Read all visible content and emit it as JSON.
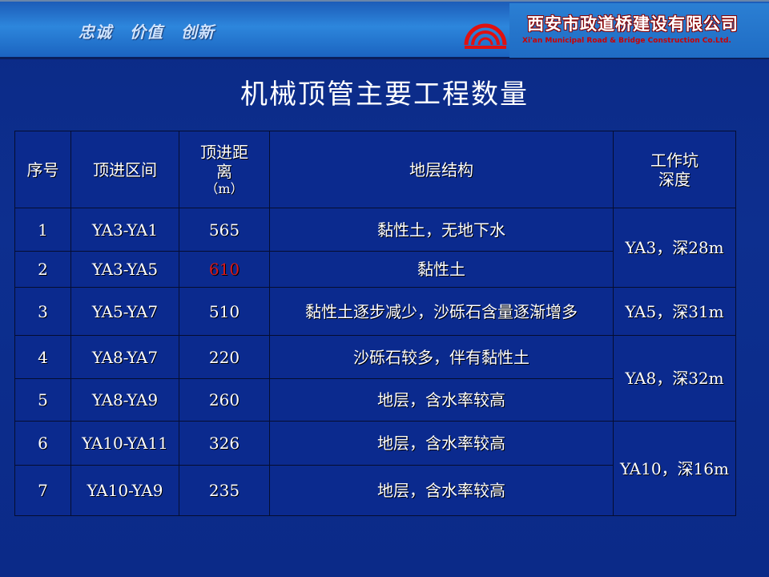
{
  "banner": {
    "slogans": [
      "忠诚",
      "价值",
      "创新"
    ],
    "company_name": "西安市政道桥建设有限公司",
    "company_name_en": "Xi'an Municipal Road & Bridge Construction Co.Ltd.",
    "logo_color": "#e01010"
  },
  "title": "机械顶管主要工程数量",
  "table": {
    "headers": {
      "no": "序号",
      "section": "顶进区间",
      "distance_l1": "顶进距",
      "distance_l2": "离",
      "distance_l3": "（m）",
      "strata": "地层结构",
      "pit_l1": "工作坑",
      "pit_l2": "深度"
    },
    "rows": [
      {
        "no": "1",
        "section": "YA3-YA1",
        "distance": "565",
        "strata": "黏性土，无地下水"
      },
      {
        "no": "2",
        "section": "YA3-YA5",
        "distance": "610",
        "strata": "黏性土"
      },
      {
        "no": "3",
        "section": "YA5-YA7",
        "distance": "510",
        "strata": "黏性土逐步减少，沙砾石含量逐渐增多"
      },
      {
        "no": "4",
        "section": "YA8-YA7",
        "distance": "220",
        "strata": "沙砾石较多，伴有黏性土"
      },
      {
        "no": "5",
        "section": "YA8-YA9",
        "distance": "260",
        "strata": "地层，含水率较高"
      },
      {
        "no": "6",
        "section": "YA10-YA11",
        "distance": "326",
        "strata": "地层，含水率较高"
      },
      {
        "no": "7",
        "section": "YA10-YA9",
        "distance": "235",
        "strata": "地层，含水率较高"
      }
    ],
    "pits": [
      "YA3，深28m",
      "YA5，深31m",
      "YA8，深32m",
      "YA10，深16m"
    ],
    "highlight_color": "#d81818"
  }
}
